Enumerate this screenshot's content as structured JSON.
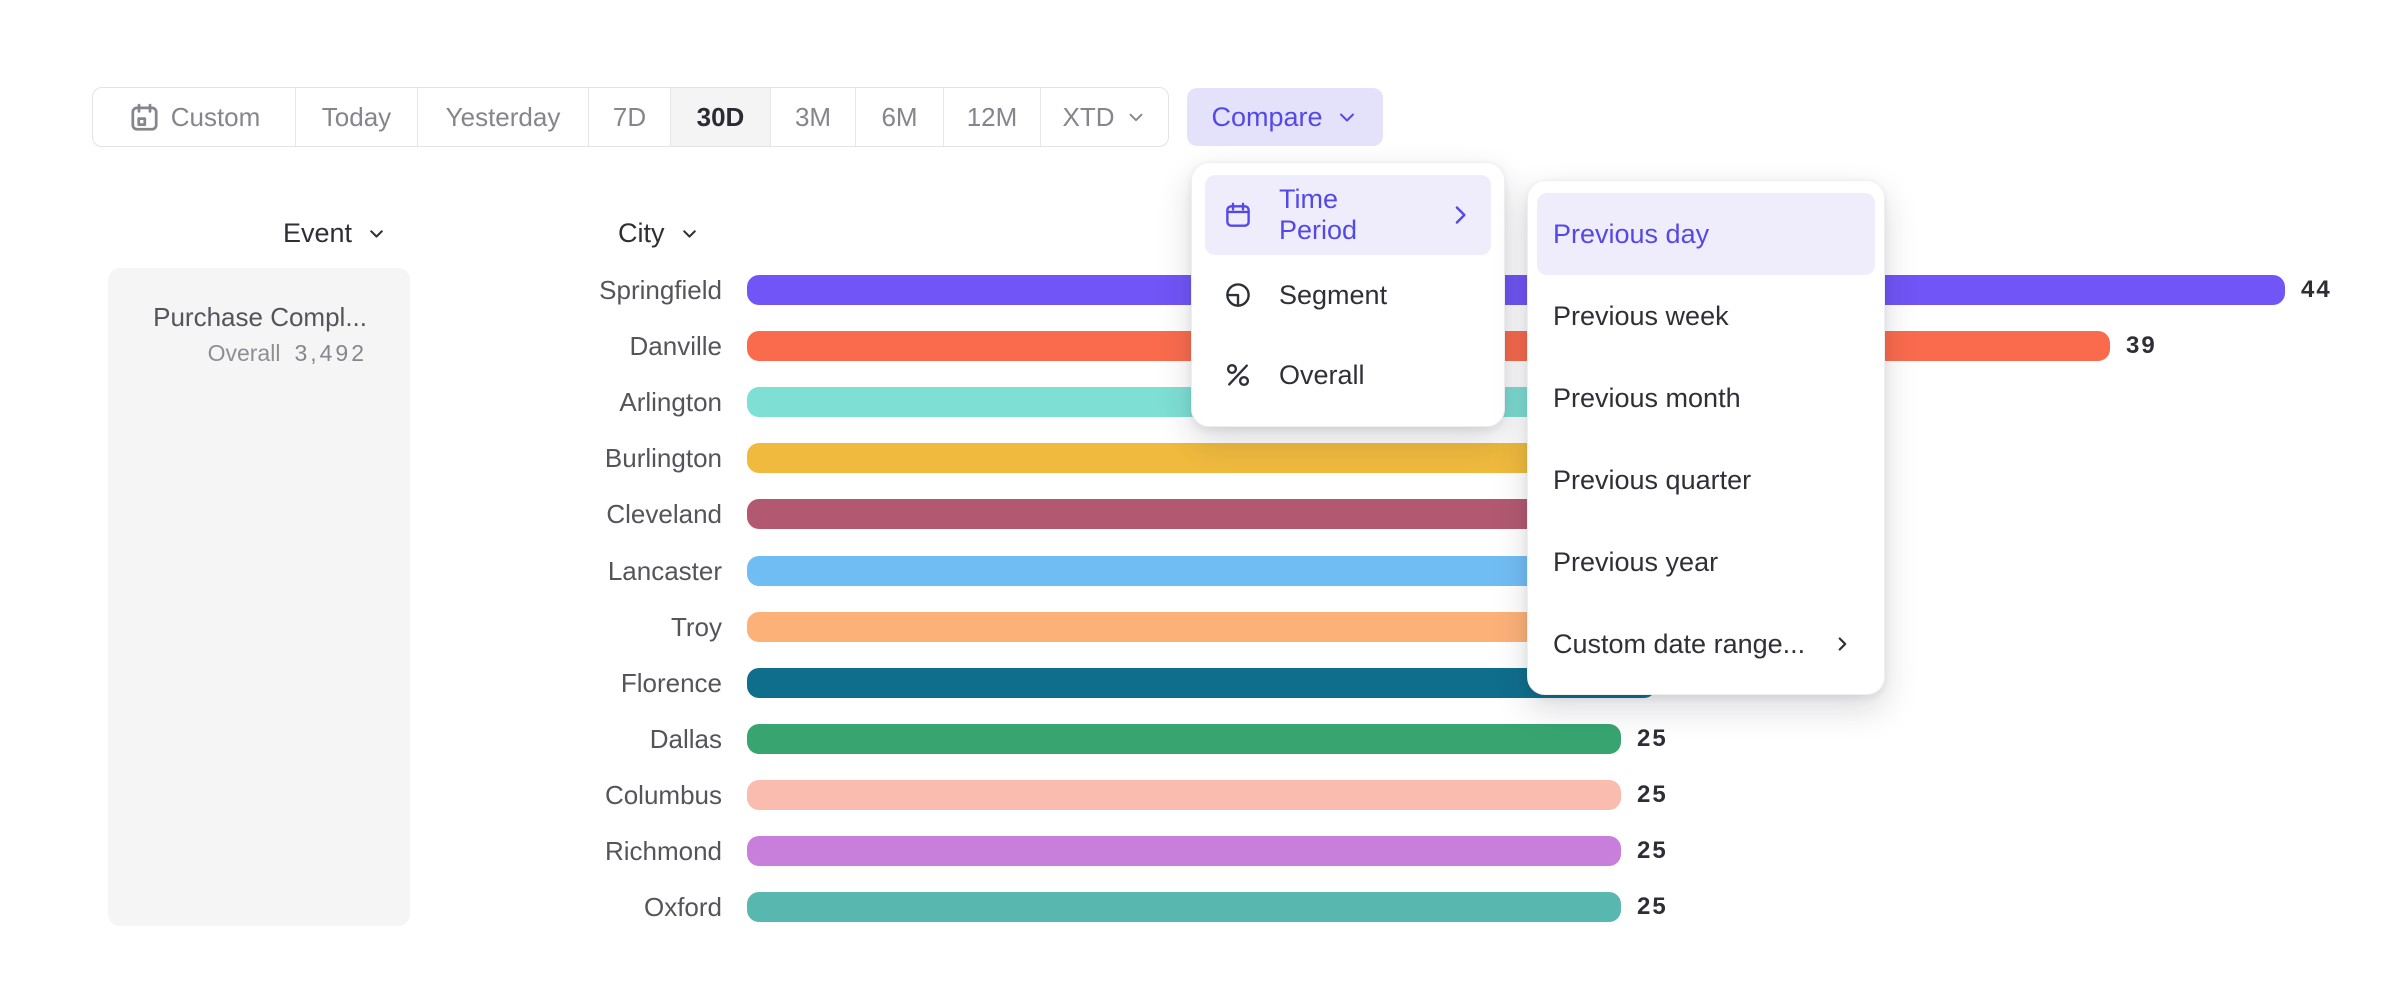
{
  "toolbar": {
    "ranges": [
      {
        "label": "Custom",
        "icon": "calendar"
      },
      {
        "label": "Today"
      },
      {
        "label": "Yesterday"
      },
      {
        "label": "7D"
      },
      {
        "label": "30D",
        "active": true
      },
      {
        "label": "3M"
      },
      {
        "label": "6M"
      },
      {
        "label": "12M"
      },
      {
        "label": "XTD",
        "chevron": true
      }
    ],
    "compare_label": "Compare"
  },
  "compare_menu": {
    "items": [
      {
        "label": "Time Period",
        "icon": "calendar-menu",
        "selected": true,
        "chevron": true
      },
      {
        "label": "Segment",
        "icon": "segment"
      },
      {
        "label": "Overall",
        "icon": "percent"
      }
    ]
  },
  "time_period_submenu": {
    "items": [
      {
        "label": "Previous day",
        "selected": true
      },
      {
        "label": "Previous week"
      },
      {
        "label": "Previous month"
      },
      {
        "label": "Previous quarter"
      },
      {
        "label": "Previous year"
      },
      {
        "label": "Custom date range...",
        "chevron": true
      }
    ]
  },
  "event_panel": {
    "header": "Event",
    "card": {
      "title": "Purchase Compl...",
      "metric_label": "Overall",
      "metric_value": "3,492"
    }
  },
  "chart_data": {
    "type": "bar",
    "orientation": "horizontal",
    "group_header": "City",
    "categories": [
      "Springfield",
      "Danville",
      "Arlington",
      "Burlington",
      "Cleveland",
      "Lancaster",
      "Troy",
      "Florence",
      "Dallas",
      "Columbus",
      "Richmond",
      "Oxford"
    ],
    "values": [
      44,
      39,
      32,
      31,
      30,
      29,
      27,
      26,
      25,
      25,
      25,
      25
    ],
    "value_labels": [
      44,
      39,
      null,
      null,
      null,
      null,
      null,
      null,
      25,
      25,
      25,
      25
    ],
    "note": "bars 3-8 end hidden behind open submenu; values estimated",
    "colors": [
      "#7155F6",
      "#FA6B4D",
      "#7EDFD4",
      "#EFBA3D",
      "#B25971",
      "#70BDF4",
      "#FCB178",
      "#0F6E8C",
      "#38A571",
      "#FBBCB0",
      "#C87FDC",
      "#58B7AE"
    ],
    "xlim": [
      0,
      46
    ],
    "grid": false,
    "legend": false
  },
  "ui_colors": {
    "accent": "#5449E8",
    "accent_bg": "#E4E2FA",
    "highlight_bg": "#EFEDFC",
    "active_tab_bg": "#F4F4F5",
    "card_bg": "#F5F5F6",
    "text_dark": "#2E2F36",
    "text_gray": "#85868D"
  }
}
